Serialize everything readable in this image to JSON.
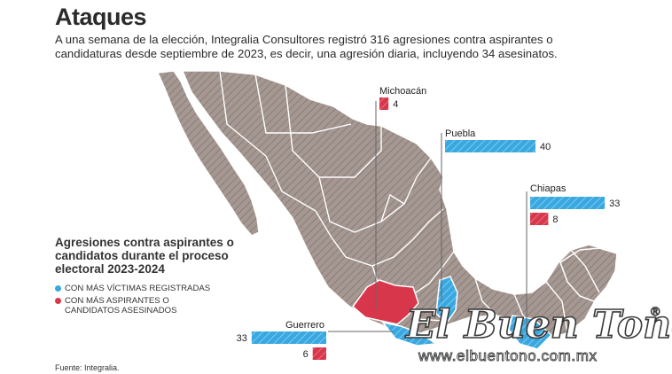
{
  "header": {
    "title": "Ataques",
    "intro": "A una semana de la elección, Integralia Consultores registró 316 agresiones contra aspirantes o candidaturas desde septiembre de 2023, es decir, una agresión diaria, incluyendo 34 asesinatos."
  },
  "legend": {
    "title": "Agresiones contra aspirantes o candidatos durante el proceso electoral 2023-2024",
    "items": [
      {
        "label": "CON MÁS VÍCTIMAS REGISTRADAS",
        "color": "#3aa8e0"
      },
      {
        "label": "CON MÁS ASPIRANTES O CANDIDATOS ASESINADOS",
        "color": "#d8364b"
      }
    ]
  },
  "source": "Fuente: Integralia.",
  "watermark": {
    "brand": "El Buen Tono",
    "registered": "®",
    "url": "www.elbuentono.com.mx"
  },
  "colors": {
    "map_fill": "#a59791",
    "victims": "#3aa8e0",
    "killed": "#d8364b",
    "leader": "#666666"
  },
  "chart_data": {
    "type": "bar",
    "categories": [
      "Michoacán",
      "Puebla",
      "Chiapas",
      "Guerrero"
    ],
    "series": [
      {
        "key": "victims",
        "values": [
          null,
          40,
          33,
          33
        ]
      },
      {
        "key": "killed",
        "values": [
          4,
          null,
          8,
          6
        ]
      }
    ],
    "title": "Agresiones contra aspirantes o candidatos durante el proceso electoral 2023-2024",
    "xlabel": "",
    "ylabel": ""
  }
}
